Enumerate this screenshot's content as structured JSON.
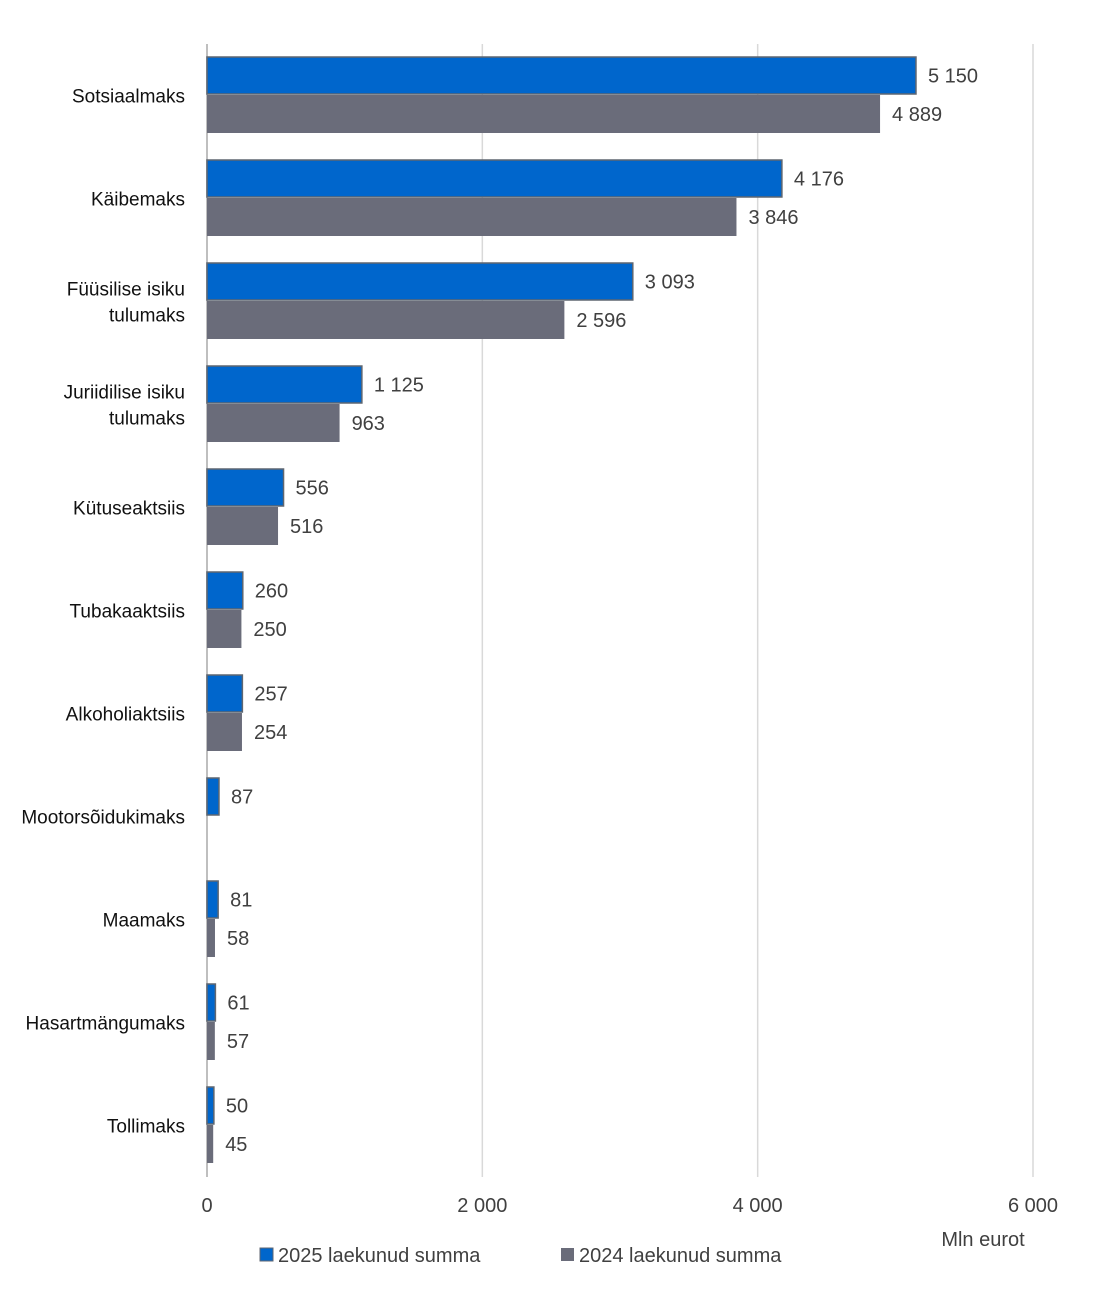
{
  "chart_data": {
    "type": "bar",
    "orientation": "horizontal",
    "categories": [
      "Sotsiaalmaks",
      "Käibemaks",
      "Füüsilise isiku tulumaks",
      "Juriidilise isiku tulumaks",
      "Kütuseaktsiis",
      "Tubakaaktsiis",
      "Alkoholiaktsiis",
      "Mootorsõidukimaks",
      "Maamaks",
      "Hasartmängumaks",
      "Tollimaks"
    ],
    "category_lines": [
      [
        "Sotsiaalmaks"
      ],
      [
        "Käibemaks"
      ],
      [
        "Füüsilise isiku",
        "tulumaks"
      ],
      [
        "Juriidilise isiku",
        "tulumaks"
      ],
      [
        "Kütuseaktsiis"
      ],
      [
        "Tubakaaktsiis"
      ],
      [
        "Alkoholiaktsiis"
      ],
      [
        "Mootorsõidukimaks"
      ],
      [
        "Maamaks"
      ],
      [
        "Hasartmängumaks"
      ],
      [
        "Tollimaks"
      ]
    ],
    "series": [
      {
        "name": "2025 laekunud summa",
        "color": "#0066CC",
        "values": [
          5150,
          4176,
          3093,
          1125,
          556,
          260,
          257,
          87,
          81,
          61,
          50
        ],
        "labels": [
          "5 150",
          "4 176",
          "3 093",
          "1 125",
          "556",
          "260",
          "257",
          "87",
          "81",
          "61",
          "50"
        ]
      },
      {
        "name": "2024 laekunud summa",
        "color": "#6A6C7A",
        "values": [
          4889,
          3846,
          2596,
          963,
          516,
          250,
          254,
          null,
          58,
          57,
          45
        ],
        "labels": [
          "4 889",
          "3 846",
          "2 596",
          "963",
          "516",
          "250",
          "254",
          "",
          "58",
          "57",
          "45"
        ]
      }
    ],
    "xlim": [
      0,
      6000
    ],
    "xticks": [
      0,
      2000,
      4000,
      6000
    ],
    "xtick_labels": [
      "0",
      "2 000",
      "4 000",
      "6 000"
    ],
    "xlabel": "Mln eurot",
    "grid": true,
    "legend_position": "bottom-left"
  }
}
